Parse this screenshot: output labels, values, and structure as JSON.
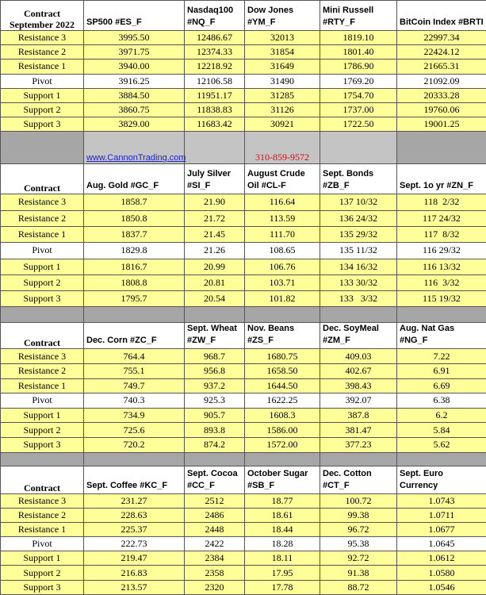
{
  "separator": {
    "website": "www.CannonTrading.com",
    "phone": "310-859-9572"
  },
  "sections": [
    {
      "contract_label": "Contract",
      "contract_sublabel": "September 2022",
      "columns": [
        "SP500 #ES_F",
        "Nasdaq100\n#NQ_F",
        "Dow Jones\n#YM_F",
        "Mini Russell\n#RTY_F",
        "BitCoin Index #BRTI"
      ],
      "rows": [
        {
          "label": "Resistance 3",
          "values": [
            "3995.50",
            "12486.67",
            "32013",
            "1819.10",
            "22997.34"
          ]
        },
        {
          "label": "Resistance 2",
          "values": [
            "3971.75",
            "12374.33",
            "31854",
            "1801.40",
            "22424.12"
          ]
        },
        {
          "label": "Resistance 1",
          "values": [
            "3940.00",
            "12218.92",
            "31649",
            "1786.90",
            "21665.31"
          ]
        },
        {
          "label": "Pivot",
          "values": [
            "3916.25",
            "12106.58",
            "31490",
            "1769.20",
            "21092.09"
          ]
        },
        {
          "label": "Support 1",
          "values": [
            "3884.50",
            "11951.17",
            "31285",
            "1754.70",
            "20333.28"
          ]
        },
        {
          "label": "Support 2",
          "values": [
            "3860.75",
            "11838.83",
            "31126",
            "1737.00",
            "19760.06"
          ]
        },
        {
          "label": "Support 3",
          "values": [
            "3829.00",
            "11683.42",
            "30921",
            "1722.50",
            "19001.25"
          ]
        }
      ]
    },
    {
      "contract_label": "Contract",
      "columns": [
        "Aug. Gold #GC_F",
        "July Silver\n#SI_F",
        "August Crude\nOil #CL-F",
        "Sept. Bonds\n#ZB_F",
        "Sept. 1o yr  #ZN_F"
      ],
      "rows": [
        {
          "label": "Resistance 3",
          "values": [
            "1858.7",
            "21.90",
            "116.64",
            "137 10/32",
            "118  2/32"
          ]
        },
        {
          "label": "Resistance 2",
          "values": [
            "1850.8",
            "21.72",
            "113.59",
            "136 24/32",
            "117 24/32"
          ]
        },
        {
          "label": "Resistance 1",
          "values": [
            "1837.7",
            "21.45",
            "111.70",
            "135 29/32",
            "117  8/32"
          ]
        },
        {
          "label": "Pivot",
          "values": [
            "1829.8",
            "21.26",
            "108.65",
            "135 11/32",
            "116 29/32"
          ]
        },
        {
          "label": "Support 1",
          "values": [
            "1816.7",
            "20.99",
            "106.76",
            "134 16/32",
            "116 13/32"
          ]
        },
        {
          "label": "Support 2",
          "values": [
            "1808.8",
            "20.81",
            "103.71",
            "133 30/32",
            "116  3/32"
          ]
        },
        {
          "label": "Support 3",
          "values": [
            "1795.7",
            "20.54",
            "101.82",
            "133   3/32",
            "115 19/32"
          ]
        }
      ]
    },
    {
      "contract_label": "Contract",
      "columns": [
        "Dec. Corn #ZC_F",
        "Sept.  Wheat\n#ZW_F",
        "Nov. Beans\n#ZS_F",
        "Dec. SoyMeal\n#ZM_F",
        "Aug. Nat Gas #NG_F"
      ],
      "rows": [
        {
          "label": "Resistance 3",
          "values": [
            "764.4",
            "968.7",
            "1680.75",
            "409.03",
            "7.22"
          ]
        },
        {
          "label": "Resistance 2",
          "values": [
            "755.1",
            "956.8",
            "1658.50",
            "402.67",
            "6.91"
          ]
        },
        {
          "label": "Resistance 1",
          "values": [
            "749.7",
            "937.2",
            "1644.50",
            "398.43",
            "6.69"
          ]
        },
        {
          "label": "Pivot",
          "values": [
            "740.3",
            "925.3",
            "1622.25",
            "392.07",
            "6.38"
          ]
        },
        {
          "label": "Support 1",
          "values": [
            "734.9",
            "905.7",
            "1608.3",
            "387.8",
            "6.2"
          ]
        },
        {
          "label": "Support 2",
          "values": [
            "725.6",
            "893.8",
            "1586.00",
            "381.47",
            "5.84"
          ]
        },
        {
          "label": "Support 3",
          "values": [
            "720.2",
            "874.2",
            "1572.00",
            "377.23",
            "5.62"
          ]
        }
      ]
    },
    {
      "contract_label": "Contract",
      "columns": [
        "Sept. Coffee #KC_F",
        "Sept. Cocoa\n#CC_F",
        "October Sugar\n#SB_F",
        "Dec. Cotton\n#CT_F",
        "Sept.  Euro\nCurrency"
      ],
      "rows": [
        {
          "label": "Resistance 3",
          "values": [
            "231.27",
            "2512",
            "18.77",
            "100.72",
            "1.0743"
          ]
        },
        {
          "label": "Resistance 2",
          "values": [
            "228.63",
            "2486",
            "18.61",
            "99.38",
            "1.0711"
          ]
        },
        {
          "label": "Resistance 1",
          "values": [
            "225.37",
            "2448",
            "18.44",
            "96.72",
            "1.0677"
          ]
        },
        {
          "label": "Pivot",
          "values": [
            "222.73",
            "2422",
            "18.28",
            "95.38",
            "1.0645"
          ]
        },
        {
          "label": "Support 1",
          "values": [
            "219.47",
            "2384",
            "18.11",
            "92.72",
            "1.0612"
          ]
        },
        {
          "label": "Support 2",
          "values": [
            "216.83",
            "2358",
            "17.95",
            "91.38",
            "1.0580"
          ]
        },
        {
          "label": "Support 3",
          "values": [
            "213.57",
            "2320",
            "17.78",
            "88.72",
            "1.0546"
          ]
        }
      ]
    }
  ]
}
